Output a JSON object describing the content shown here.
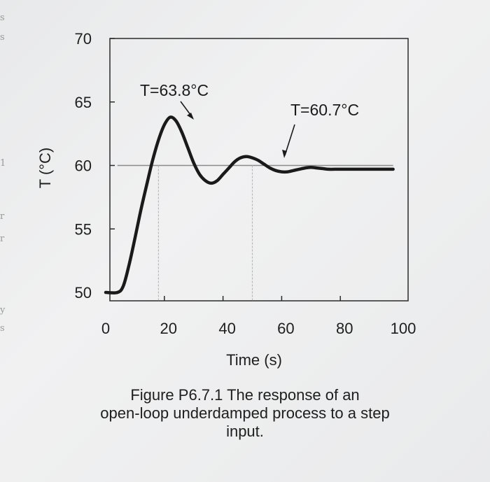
{
  "chart_data": {
    "type": "line",
    "xlabel": "Time (s)",
    "ylabel": "T (°C)",
    "xlim": [
      0,
      100
    ],
    "ylim": [
      50,
      70
    ],
    "xticks": [
      0,
      20,
      40,
      60,
      80,
      100
    ],
    "yticks": [
      50,
      55,
      60,
      65,
      70
    ],
    "grid": false,
    "series": [
      {
        "x": [
          0,
          4,
          6,
          8,
          10,
          12,
          14,
          16,
          18,
          20,
          22,
          24,
          26,
          28,
          30,
          32,
          34,
          36,
          38,
          40,
          42,
          44,
          46,
          48,
          50,
          52,
          54,
          56,
          58,
          60,
          62,
          64,
          66,
          68,
          70,
          72,
          74,
          76,
          78,
          80,
          82,
          84,
          86,
          88,
          90,
          92,
          94,
          96,
          98
        ],
        "y": [
          50.0,
          50.0,
          50.5,
          52.2,
          54.3,
          56.5,
          58.5,
          60.4,
          62.0,
          63.2,
          63.8,
          63.5,
          62.6,
          61.4,
          60.2,
          59.3,
          58.8,
          58.6,
          58.8,
          59.3,
          59.8,
          60.3,
          60.6,
          60.7,
          60.6,
          60.4,
          60.1,
          59.8,
          59.6,
          59.5,
          59.5,
          59.6,
          59.7,
          59.8,
          59.85,
          59.8,
          59.75,
          59.7,
          59.7,
          59.7,
          59.7,
          59.7,
          59.7,
          59.7,
          59.7,
          59.7,
          59.7,
          59.7,
          59.7
        ]
      }
    ],
    "reference_line": {
      "y": 60,
      "x_range": [
        4,
        98
      ]
    },
    "guide_lines_x": [
      18,
      50
    ],
    "annotations": [
      {
        "text": "T=63.8°C",
        "x": 20,
        "y": 63.8
      },
      {
        "text": "T=60.7°C",
        "x": 48,
        "y": 60.7
      }
    ]
  },
  "caption": {
    "line1": "Figure P6.7.1 The response of an",
    "line2": "open-loop underdamped process to a step",
    "line3": "input."
  },
  "edge_marks": [
    "s",
    "s",
    "1",
    "r",
    "r",
    "y",
    "s"
  ]
}
